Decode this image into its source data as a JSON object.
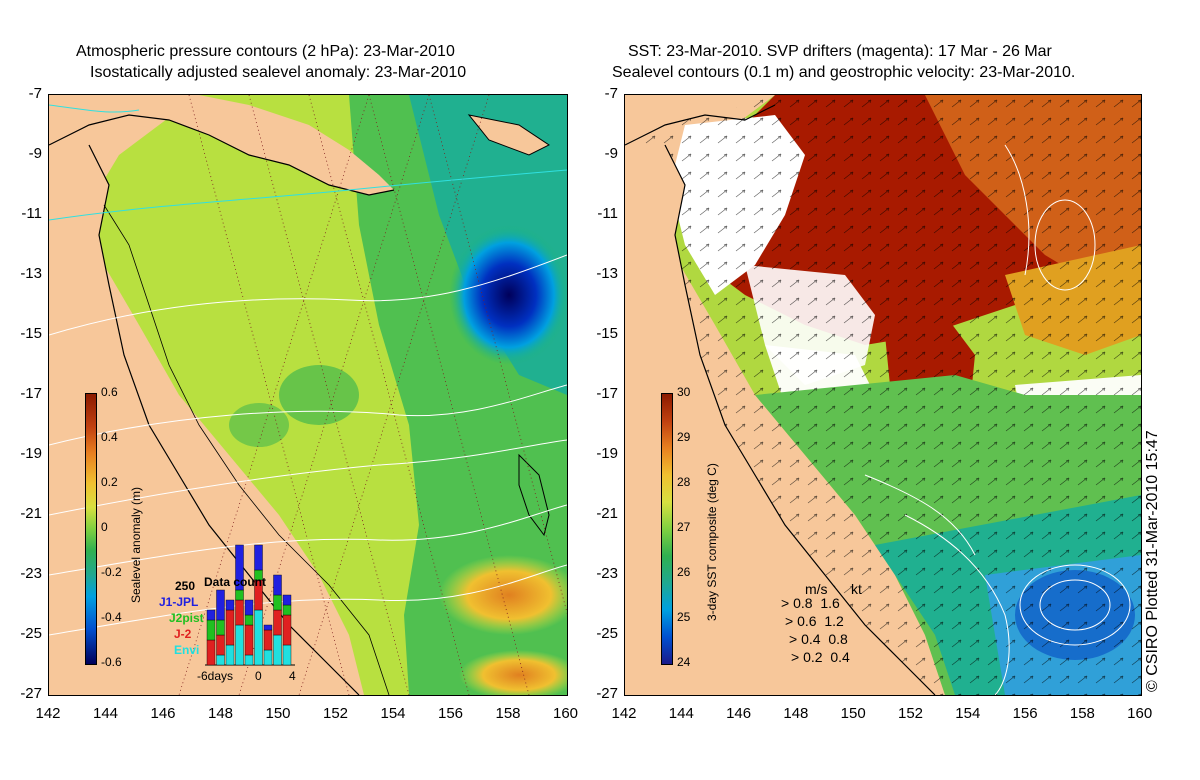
{
  "left_panel": {
    "title_line1": "Atmospheric pressure contours (2 hPa): 23-Mar-2010",
    "title_line2": "Isostatically adjusted sealevel anomaly: 23-Mar-2010",
    "colorbar_label": "Sealevel anomaly (m)",
    "colorbar_ticks": [
      "0.6",
      "0.4",
      "0.2",
      "0",
      "-0.2",
      "-0.4",
      "-0.6"
    ],
    "inset": {
      "title": "Data count",
      "max_label": "250",
      "x_labels": [
        "-6days",
        "0",
        "4"
      ],
      "satellites": [
        {
          "name": "J1-JPL",
          "color": "#2020e0"
        },
        {
          "name": "J2pist",
          "color": "#20c020"
        },
        {
          "name": "J-2",
          "color": "#e02020"
        },
        {
          "name": "Envi",
          "color": "#20e0e0"
        }
      ]
    }
  },
  "right_panel": {
    "title_line1": "SST: 23-Mar-2010. SVP drifters (magenta): 17 Mar - 26 Mar",
    "title_line2": "Sealevel contours (0.1 m) and geostrophic velocity: 23-Mar-2010.",
    "colorbar_label": "3-day SST composite (deg C)",
    "colorbar_ticks": [
      "30",
      "29",
      "28",
      "27",
      "26",
      "25",
      "24"
    ],
    "velocity_legend": {
      "header_ms": "m/s",
      "header_kt": "kt",
      "rows": [
        {
          "ms": "0.8",
          "kt": "1.6"
        },
        {
          "ms": "0.6",
          "kt": "1.2"
        },
        {
          "ms": "0.4",
          "kt": "0.8"
        },
        {
          "ms": "0.2",
          "kt": "0.4"
        }
      ]
    }
  },
  "axes": {
    "lat_labels": [
      "-7",
      "-9",
      "-11",
      "-13",
      "-15",
      "-17",
      "-19",
      "-21",
      "-23",
      "-25",
      "-27"
    ],
    "lon_labels": [
      "142",
      "144",
      "146",
      "148",
      "150",
      "152",
      "154",
      "156",
      "158",
      "160"
    ]
  },
  "credit": "© CSIRO Plotted 31-Mar-2010 15:47",
  "colors": {
    "land": "#f7c79a",
    "sla_high": "#8b1a00",
    "sla_low": "#00005a",
    "sst_high": "#a01800",
    "sst_low": "#1a1a8a"
  }
}
